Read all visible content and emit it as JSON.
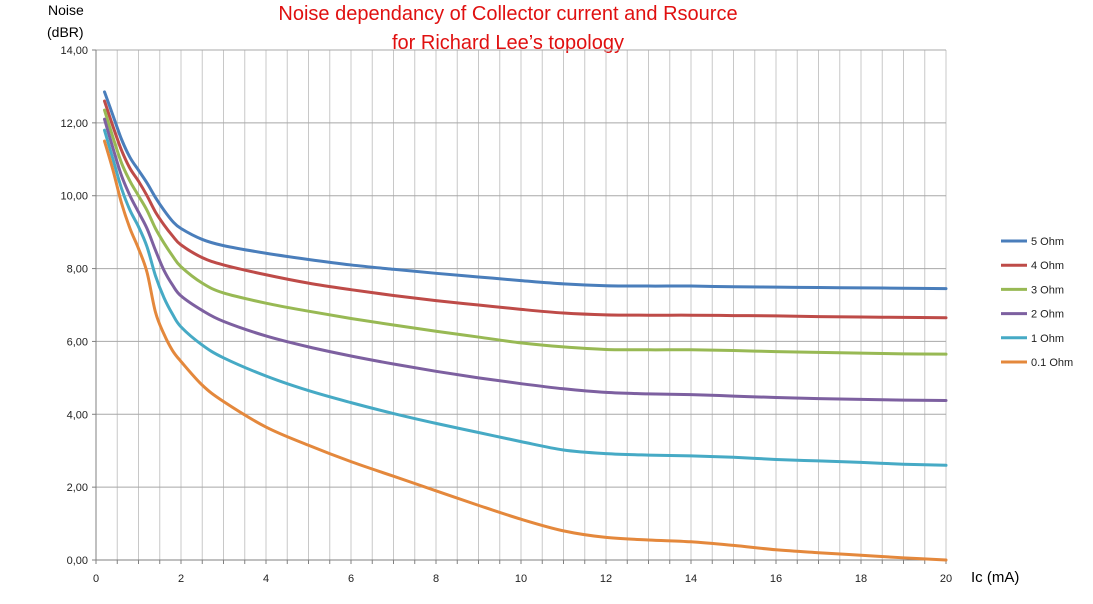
{
  "chart_data": {
    "type": "line",
    "title_line1": "Noise dependancy of Collector current and Rsource",
    "title_line2": "for Richard Lee’s topology",
    "ylabel_line1": "Noise",
    "ylabel_line2": "(dBR)",
    "xlabel": "Ic (mA)",
    "xlim": [
      0,
      20
    ],
    "ylim": [
      0,
      14
    ],
    "x_ticks": [
      "0",
      "2",
      "4",
      "6",
      "8",
      "10",
      "12",
      "14",
      "16",
      "18",
      "20"
    ],
    "y_ticks": [
      "0,00",
      "2,00",
      "4,00",
      "6,00",
      "8,00",
      "10,00",
      "12,00",
      "14,00"
    ],
    "grid": true,
    "legend_position": "right",
    "series": [
      {
        "name": "5 Ohm",
        "color": "#4a7ebb",
        "x": [
          0.2,
          0.4,
          0.6,
          0.8,
          1,
          1.2,
          1.4,
          1.6,
          1.8,
          2,
          2.5,
          3,
          4,
          5,
          6,
          7,
          8,
          9,
          10,
          11,
          12,
          13,
          14,
          15,
          16,
          17,
          18,
          19,
          20
        ],
        "values": [
          12.85,
          12.2,
          11.55,
          11.05,
          10.7,
          10.35,
          9.95,
          9.6,
          9.3,
          9.1,
          8.8,
          8.63,
          8.42,
          8.25,
          8.1,
          7.98,
          7.87,
          7.77,
          7.67,
          7.58,
          7.53,
          7.52,
          7.52,
          7.5,
          7.49,
          7.48,
          7.47,
          7.46,
          7.45
        ]
      },
      {
        "name": "4 Ohm",
        "color": "#be4b48",
        "x": [
          0.2,
          0.4,
          0.6,
          0.8,
          1,
          1.2,
          1.4,
          1.6,
          1.8,
          2,
          2.5,
          3,
          4,
          5,
          6,
          7,
          8,
          9,
          10,
          11,
          12,
          13,
          14,
          15,
          16,
          17,
          18,
          19,
          20
        ],
        "values": [
          12.6,
          11.9,
          11.25,
          10.75,
          10.4,
          10.0,
          9.55,
          9.2,
          8.9,
          8.65,
          8.3,
          8.1,
          7.83,
          7.6,
          7.42,
          7.26,
          7.12,
          7.0,
          6.88,
          6.78,
          6.73,
          6.72,
          6.72,
          6.71,
          6.7,
          6.68,
          6.67,
          6.66,
          6.65
        ]
      },
      {
        "name": "3 Ohm",
        "color": "#98b954",
        "x": [
          0.2,
          0.4,
          0.6,
          0.8,
          1,
          1.2,
          1.4,
          1.6,
          1.8,
          2,
          2.5,
          3,
          4,
          5,
          6,
          7,
          8,
          9,
          10,
          11,
          12,
          13,
          14,
          15,
          16,
          17,
          18,
          19,
          20
        ],
        "values": [
          12.35,
          11.6,
          10.9,
          10.4,
          10.0,
          9.6,
          9.1,
          8.7,
          8.35,
          8.05,
          7.6,
          7.33,
          7.05,
          6.83,
          6.63,
          6.45,
          6.28,
          6.12,
          5.96,
          5.85,
          5.78,
          5.77,
          5.77,
          5.75,
          5.72,
          5.7,
          5.68,
          5.66,
          5.65
        ]
      },
      {
        "name": "2 Ohm",
        "color": "#7d60a0",
        "x": [
          0.2,
          0.4,
          0.6,
          0.8,
          1,
          1.2,
          1.4,
          1.6,
          1.8,
          2,
          2.5,
          3,
          4,
          5,
          6,
          7,
          8,
          9,
          10,
          11,
          12,
          13,
          14,
          15,
          16,
          17,
          18,
          19,
          20
        ],
        "values": [
          12.1,
          11.3,
          10.55,
          10.0,
          9.55,
          9.1,
          8.5,
          7.95,
          7.55,
          7.25,
          6.85,
          6.55,
          6.15,
          5.85,
          5.6,
          5.38,
          5.18,
          5.0,
          4.84,
          4.7,
          4.6,
          4.56,
          4.54,
          4.5,
          4.46,
          4.43,
          4.41,
          4.39,
          4.38
        ]
      },
      {
        "name": "1 Ohm",
        "color": "#46aac5",
        "x": [
          0.2,
          0.4,
          0.6,
          0.8,
          1,
          1.2,
          1.4,
          1.6,
          1.8,
          2,
          2.5,
          3,
          4,
          5,
          6,
          7,
          8,
          9,
          10,
          11,
          12,
          13,
          14,
          15,
          16,
          17,
          18,
          19,
          20
        ],
        "values": [
          11.8,
          11.0,
          10.2,
          9.6,
          9.15,
          8.6,
          7.8,
          7.2,
          6.75,
          6.4,
          5.9,
          5.55,
          5.05,
          4.65,
          4.32,
          4.02,
          3.75,
          3.5,
          3.25,
          3.02,
          2.92,
          2.88,
          2.86,
          2.82,
          2.76,
          2.72,
          2.68,
          2.63,
          2.6
        ]
      },
      {
        "name": "0.1 Ohm",
        "color": "#e4883c",
        "x": [
          0.2,
          0.4,
          0.6,
          0.8,
          1,
          1.2,
          1.4,
          1.6,
          1.8,
          2,
          2.5,
          3,
          4,
          5,
          6,
          7,
          8,
          9,
          10,
          11,
          12,
          13,
          14,
          15,
          16,
          17,
          18,
          19,
          20
        ],
        "values": [
          11.5,
          10.7,
          9.8,
          9.1,
          8.55,
          7.9,
          6.8,
          6.2,
          5.75,
          5.45,
          4.8,
          4.35,
          3.65,
          3.15,
          2.7,
          2.3,
          1.9,
          1.5,
          1.12,
          0.8,
          0.62,
          0.55,
          0.5,
          0.4,
          0.28,
          0.2,
          0.13,
          0.06,
          0.0
        ]
      }
    ]
  }
}
